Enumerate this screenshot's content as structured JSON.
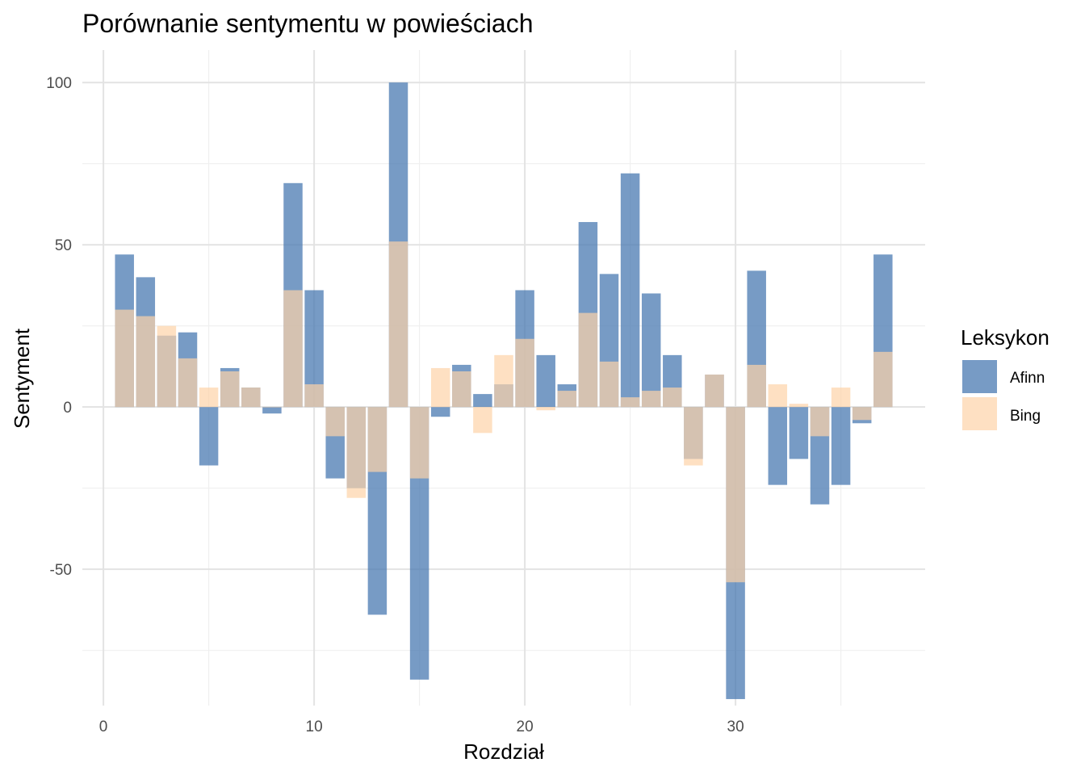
{
  "chart_data": {
    "type": "bar",
    "title": "Porównanie sentymentu w powieściach",
    "xlabel": "Rozdział",
    "ylabel": "Sentyment",
    "xlim": [
      -1,
      39
    ],
    "ylim": [
      -92,
      110
    ],
    "x_ticks": [
      0,
      10,
      20,
      30
    ],
    "x_tick_labels": [
      "0",
      "10",
      "20",
      "30"
    ],
    "y_ticks": [
      -50,
      0,
      50,
      100
    ],
    "y_tick_labels": [
      "-50",
      "0",
      "50",
      "100"
    ],
    "grid": true,
    "legend": {
      "title": "Leksykon",
      "placement": "right"
    },
    "x": [
      1,
      2,
      3,
      4,
      5,
      6,
      7,
      8,
      9,
      10,
      11,
      12,
      13,
      14,
      15,
      16,
      17,
      18,
      19,
      20,
      21,
      22,
      23,
      24,
      25,
      26,
      27,
      28,
      29,
      30,
      31,
      32,
      33,
      34,
      35,
      36,
      37
    ],
    "series": [
      {
        "name": "Afinn",
        "color": "#4a7ab1",
        "opacity": 0.75,
        "values": [
          47,
          40,
          22,
          23,
          -18,
          12,
          6,
          -2,
          69,
          36,
          -22,
          -25,
          -64,
          100,
          -84,
          -3,
          13,
          4,
          7,
          36,
          16,
          7,
          57,
          41,
          72,
          35,
          16,
          -16,
          10,
          -90,
          42,
          -24,
          -16,
          -30,
          -24,
          -5,
          47
        ]
      },
      {
        "name": "Bing",
        "color": "#fed3a8",
        "opacity": 0.7,
        "values": [
          30,
          28,
          25,
          15,
          6,
          11,
          6,
          0,
          36,
          7,
          -9,
          -28,
          -20,
          51,
          -22,
          12,
          11,
          -8,
          16,
          21,
          -1,
          5,
          29,
          14,
          3,
          5,
          6,
          -18,
          10,
          -54,
          13,
          7,
          1,
          -9,
          6,
          -4,
          17
        ]
      }
    ]
  }
}
